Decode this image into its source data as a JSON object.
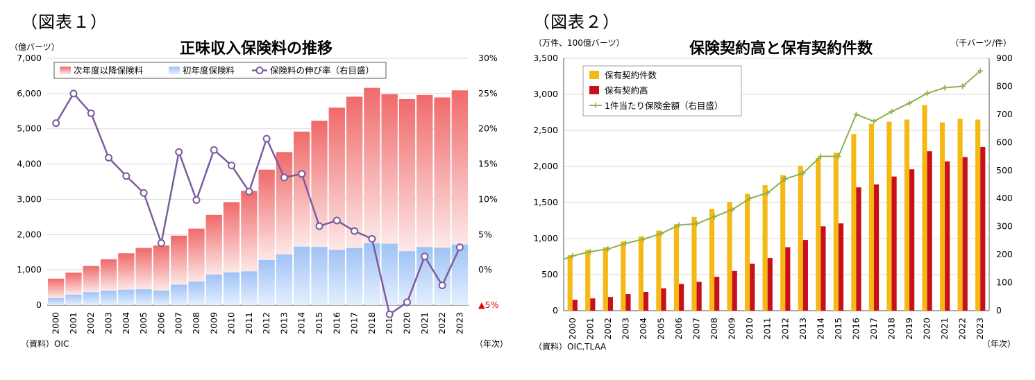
{
  "chart1": {
    "figure_label": "（図表１）",
    "title": "正味収入保険料の推移",
    "left_unit": "（億バーツ）",
    "x_unit": "（年次）",
    "source": "（資料）OIC",
    "negative_marker": "▲",
    "legend": [
      "次年度以降保険料",
      "初年度保険料",
      "保険料の伸び率（右目盛）"
    ]
  },
  "chart2": {
    "figure_label": "（図表２）",
    "title": "保険契約高と保有契約件数",
    "left_unit": "（万件、100億バーツ）",
    "right_unit": "（千バーツ/件）",
    "x_unit": "（年次）",
    "source": "（資料）OIC,TLAA",
    "legend": [
      "保有契約件数",
      "保有契約高",
      "1件当たり保険金額（右目盛）"
    ]
  },
  "chart_data": [
    {
      "type": "bar",
      "stacked": true,
      "title": "正味収入保険料の推移",
      "categories": [
        "2000",
        "2001",
        "2002",
        "2003",
        "2004",
        "2005",
        "2006",
        "2007",
        "2008",
        "2009",
        "2010",
        "2011",
        "2012",
        "2013",
        "2014",
        "2015",
        "2016",
        "2017",
        "2018",
        "2019",
        "2020",
        "2021",
        "2022",
        "2023"
      ],
      "series": [
        {
          "name": "初年度保険料",
          "axis": "left",
          "color": "#a9c8f5",
          "values": [
            200,
            300,
            370,
            410,
            440,
            450,
            410,
            580,
            670,
            870,
            930,
            960,
            1280,
            1440,
            1660,
            1650,
            1570,
            1620,
            1760,
            1740,
            1530,
            1650,
            1630,
            1720
          ]
        },
        {
          "name": "次年度以降保険料",
          "axis": "left",
          "color": "#f07a7a",
          "values": [
            550,
            620,
            740,
            890,
            1030,
            1170,
            1280,
            1390,
            1500,
            1690,
            1990,
            2280,
            2560,
            2900,
            3260,
            3580,
            4030,
            4290,
            4400,
            4240,
            4310,
            4310,
            4260,
            4370
          ]
        },
        {
          "name": "保険料の伸び率（右目盛）",
          "type": "line",
          "axis": "right",
          "color": "#7a5c9e",
          "values": [
            20.8,
            25.0,
            22.2,
            15.9,
            13.3,
            10.9,
            3.8,
            16.7,
            9.9,
            17.0,
            14.8,
            11.1,
            18.6,
            13.1,
            13.6,
            6.2,
            7.0,
            5.5,
            4.4,
            -6.3,
            -4.6,
            1.9,
            -2.2,
            3.2
          ]
        }
      ],
      "ylim": [
        0,
        7000
      ],
      "yticks": [
        0,
        1000,
        2000,
        3000,
        4000,
        5000,
        6000,
        7000
      ],
      "ylim_right": [
        -5,
        30
      ],
      "yticks_right": [
        -5,
        0,
        5,
        10,
        15,
        20,
        25,
        30
      ],
      "legend_position": "top"
    },
    {
      "type": "bar",
      "title": "保険契約高と保有契約件数",
      "categories": [
        "2000",
        "2001",
        "2002",
        "2003",
        "2004",
        "2005",
        "2006",
        "2007",
        "2008",
        "2009",
        "2010",
        "2011",
        "2012",
        "2013",
        "2014",
        "2015",
        "2016",
        "2017",
        "2018",
        "2019",
        "2020",
        "2021",
        "2022",
        "2023"
      ],
      "series": [
        {
          "name": "保有契約件数",
          "axis": "left",
          "color": "#f5b915",
          "values": [
            770,
            840,
            880,
            960,
            1030,
            1110,
            1200,
            1300,
            1410,
            1510,
            1620,
            1740,
            1880,
            2010,
            2120,
            2190,
            2450,
            2590,
            2620,
            2650,
            2850,
            2610,
            2660,
            2650
          ]
        },
        {
          "name": "保有契約高",
          "axis": "left",
          "color": "#c8101a",
          "values": [
            150,
            170,
            190,
            230,
            260,
            310,
            370,
            400,
            470,
            550,
            650,
            730,
            880,
            980,
            1170,
            1210,
            1710,
            1750,
            1860,
            1960,
            2210,
            2070,
            2130,
            2270
          ]
        },
        {
          "name": "1件当たり保険金額（右目盛）",
          "type": "line",
          "axis": "right",
          "color": "#8db04a",
          "values": [
            195,
            210,
            220,
            240,
            255,
            275,
            305,
            310,
            335,
            360,
            400,
            420,
            470,
            490,
            550,
            550,
            700,
            675,
            710,
            740,
            775,
            795,
            800,
            855
          ]
        }
      ],
      "ylim": [
        0,
        3500
      ],
      "yticks": [
        0,
        500,
        1000,
        1500,
        2000,
        2500,
        3000,
        3500
      ],
      "ylim_right": [
        0,
        900
      ],
      "yticks_right": [
        0,
        100,
        200,
        300,
        400,
        500,
        600,
        700,
        800,
        900
      ],
      "legend_position": "top-left"
    }
  ]
}
